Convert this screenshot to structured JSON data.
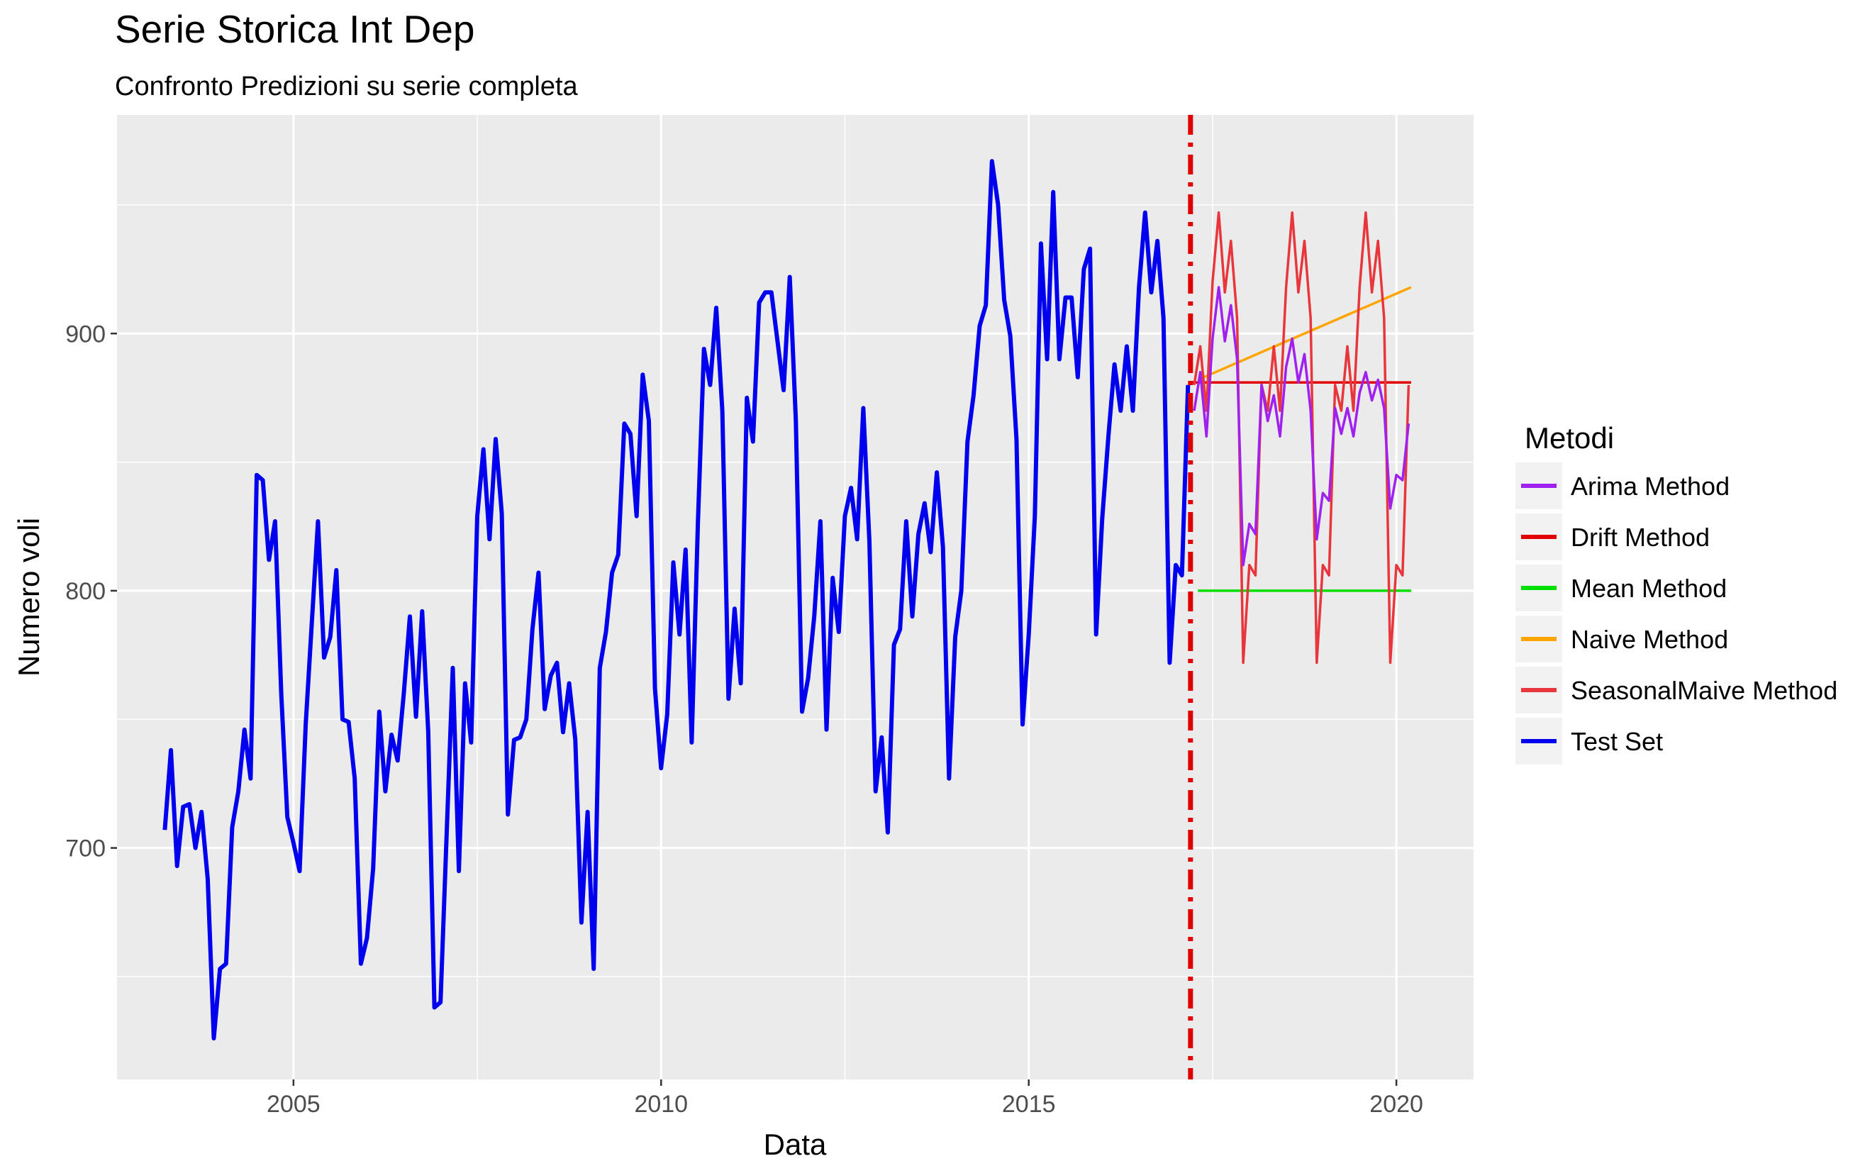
{
  "chart_data": {
    "type": "line",
    "title": "Serie Storica Int Dep",
    "subtitle": "Confronto Predizioni su serie completa",
    "xlabel": "Data",
    "ylabel": "Numero voli",
    "xlim": [
      2002.6,
      2021.05
    ],
    "ylim": [
      610,
      985
    ],
    "x_ticks": [
      2005,
      2010,
      2015,
      2020
    ],
    "y_ticks": [
      700,
      800,
      900
    ],
    "grid": true,
    "legend": {
      "title": "Metodi",
      "placement": "right",
      "items": [
        {
          "label": "Arima Method",
          "color": "#a020f0"
        },
        {
          "label": "Drift Method",
          "color": "#e00000"
        },
        {
          "label": "Mean Method",
          "color": "#00e000"
        },
        {
          "label": "Naive Method",
          "color": "#ffa500"
        },
        {
          "label": "SeasonalMaive Method",
          "color": "#e8363c"
        },
        {
          "label": "Test Set",
          "color": "#0000ee"
        }
      ]
    },
    "vline": {
      "x": 2017.2,
      "color": "#e00000",
      "style": "dashdot"
    },
    "series": [
      {
        "name": "Test Set",
        "color": "#0000ee",
        "x_start": 2003.25,
        "x_step": 0.08333,
        "values": [
          707,
          738,
          693,
          716,
          717,
          700,
          714,
          688,
          626,
          653,
          655,
          708,
          722,
          746,
          727,
          845,
          843,
          812,
          827,
          760,
          712,
          702,
          691,
          748,
          788,
          827,
          774,
          782,
          808,
          750,
          749,
          727,
          655,
          665,
          692,
          753,
          722,
          744,
          734,
          760,
          790,
          751,
          792,
          745,
          638,
          640,
          705,
          770,
          691,
          764,
          741,
          829,
          855,
          820,
          859,
          830,
          713,
          742,
          743,
          750,
          785,
          807,
          754,
          767,
          772,
          745,
          764,
          742,
          671,
          714,
          653,
          770,
          784,
          807,
          814,
          865,
          861,
          829,
          884,
          866,
          762,
          731,
          752,
          811,
          783,
          816,
          741,
          826,
          894,
          880,
          910,
          870,
          758,
          793,
          764,
          875,
          858,
          912,
          916,
          916,
          897,
          878,
          922,
          866,
          753,
          766,
          790,
          827,
          746,
          805,
          784,
          829,
          840,
          820,
          871,
          819,
          722,
          743,
          706,
          779,
          785,
          827,
          790,
          822,
          834,
          815,
          846,
          817,
          727,
          782,
          800,
          858,
          876,
          903,
          911,
          967,
          950,
          913,
          899,
          859,
          748,
          783,
          829,
          935,
          890,
          955,
          890,
          914,
          914,
          883,
          925,
          933,
          783,
          828,
          860,
          888,
          870,
          895,
          870,
          918,
          947,
          916,
          936,
          906,
          772,
          810,
          806,
          880
        ]
      },
      {
        "name": "Arima Method",
        "color": "#a020f0",
        "x_start": 2017.25,
        "x_step": 0.08333,
        "values": [
          870,
          885,
          860,
          898,
          918,
          897,
          911,
          890,
          810,
          826,
          822,
          880,
          866,
          876,
          860,
          887,
          898,
          881,
          892,
          870,
          820,
          838,
          835,
          871,
          861,
          871,
          860,
          877,
          885,
          874,
          882,
          871,
          832,
          845,
          843,
          865
        ]
      },
      {
        "name": "SeasonalMaive Method",
        "color": "#e8363c",
        "x_start": 2017.25,
        "x_step": 0.08333,
        "values": [
          880,
          895,
          870,
          920,
          947,
          916,
          936,
          906,
          772,
          810,
          806,
          880,
          870,
          895,
          870,
          918,
          947,
          916,
          936,
          906,
          772,
          810,
          806,
          880,
          870,
          895,
          870,
          918,
          947,
          916,
          936,
          906,
          772,
          810,
          806,
          880
        ]
      },
      {
        "name": "Naive Method",
        "color": "#ffa500",
        "x": [
          2017.3,
          2020.2
        ],
        "values": [
          882,
          918
        ]
      },
      {
        "name": "Drift Method",
        "color": "#e00000",
        "x": [
          2017.2,
          2020.2
        ],
        "values": [
          881,
          881
        ]
      },
      {
        "name": "Mean Method",
        "color": "#00e000",
        "x": [
          2017.3,
          2020.2
        ],
        "values": [
          800,
          800
        ]
      }
    ]
  }
}
